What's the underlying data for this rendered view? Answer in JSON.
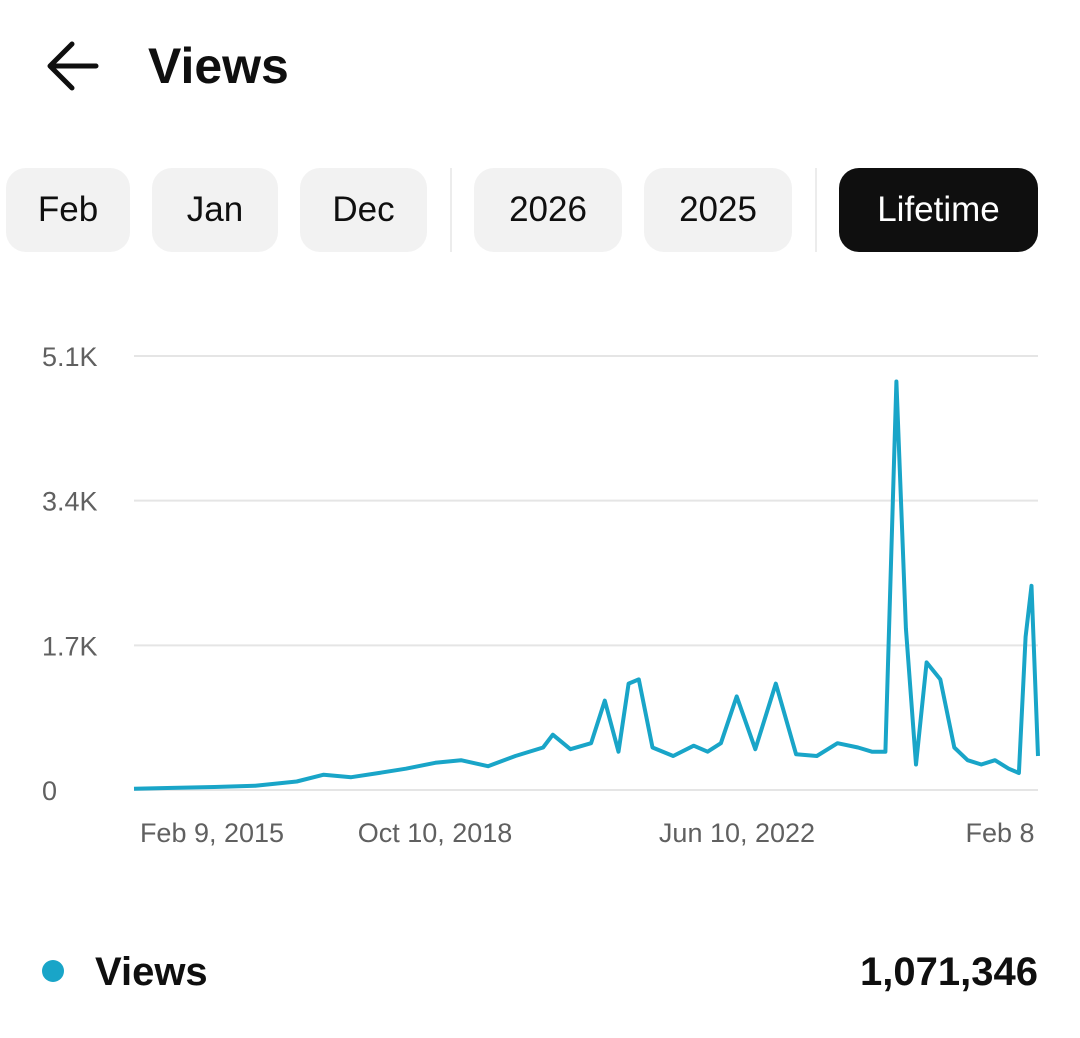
{
  "header": {
    "back_icon": "arrow-left-icon",
    "title": "Views"
  },
  "period_chips": {
    "months": [
      "Feb",
      "Jan",
      "Dec"
    ],
    "years": [
      "2026",
      "2025"
    ],
    "lifetime": "Lifetime",
    "selected": "Lifetime"
  },
  "colors": {
    "series": "#19a5c8",
    "chip_bg": "#f2f2f2",
    "chip_active_bg": "#0f0f0f",
    "grid": "#e5e5e5"
  },
  "chart_data": {
    "type": "line",
    "y_ticks": [
      "5.1K",
      "3.4K",
      "1.7K",
      "0"
    ],
    "ylim": [
      0,
      5100
    ],
    "x_ticks": [
      "Feb 9, 2015",
      "Oct 10, 2018",
      "Jun 10, 2022",
      "Feb 8"
    ],
    "grid": true,
    "series": [
      {
        "name": "Views",
        "x": [
          "2015-02-09",
          "2015-08-01",
          "2016-02-01",
          "2016-08-01",
          "2017-02-01",
          "2017-06-01",
          "2017-10-01",
          "2018-02-01",
          "2018-06-01",
          "2018-10-10",
          "2019-02-01",
          "2019-06-01",
          "2019-10-01",
          "2020-02-01",
          "2020-03-15",
          "2020-06-01",
          "2020-09-01",
          "2020-11-01",
          "2021-01-01",
          "2021-02-15",
          "2021-04-01",
          "2021-06-01",
          "2021-09-01",
          "2021-12-01",
          "2022-02-01",
          "2022-04-01",
          "2022-06-10",
          "2022-09-01",
          "2022-12-01",
          "2023-03-01",
          "2023-06-01",
          "2023-09-01",
          "2023-12-01",
          "2024-02-01",
          "2024-04-01",
          "2024-05-20",
          "2024-07-01",
          "2024-08-15",
          "2024-10-01",
          "2024-12-01",
          "2025-02-01",
          "2025-04-01",
          "2025-06-01",
          "2025-08-01",
          "2025-10-01",
          "2025-11-15",
          "2025-12-15",
          "2026-01-10",
          "2026-02-08"
        ],
        "values": [
          15,
          25,
          35,
          50,
          100,
          180,
          150,
          200,
          250,
          320,
          350,
          280,
          400,
          500,
          650,
          480,
          550,
          1050,
          450,
          1250,
          1300,
          500,
          400,
          520,
          450,
          550,
          1100,
          480,
          1250,
          420,
          400,
          550,
          500,
          450,
          450,
          4800,
          1900,
          300,
          1500,
          1300,
          500,
          350,
          300,
          350,
          250,
          200,
          1800,
          2400,
          400
        ]
      }
    ]
  },
  "legend": {
    "label": "Views",
    "value": "1,071,346"
  }
}
